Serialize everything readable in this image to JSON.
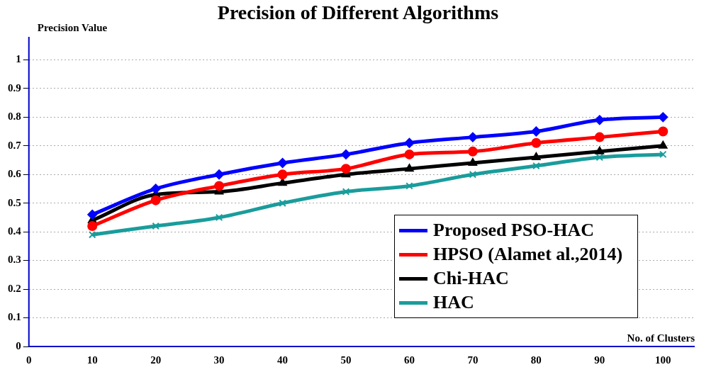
{
  "chart_data": {
    "type": "line",
    "title": "Precision of Different Algorithms",
    "xlabel": "No. of Clusters",
    "ylabel": "Precision Value",
    "x": [
      10,
      20,
      30,
      40,
      50,
      60,
      70,
      80,
      90,
      100
    ],
    "series": [
      {
        "name": "Proposed PSO-HAC",
        "color": "#0000ff",
        "marker": "diamond",
        "values": [
          0.46,
          0.55,
          0.6,
          0.64,
          0.67,
          0.71,
          0.73,
          0.75,
          0.79,
          0.8
        ]
      },
      {
        "name": "HPSO (Alamet al.,2014)",
        "color": "#ff0000",
        "marker": "circle",
        "values": [
          0.42,
          0.51,
          0.56,
          0.6,
          0.62,
          0.67,
          0.68,
          0.71,
          0.73,
          0.75
        ]
      },
      {
        "name": "Chi-HAC",
        "color": "#000000",
        "marker": "triangle",
        "values": [
          0.44,
          0.53,
          0.54,
          0.57,
          0.6,
          0.62,
          0.64,
          0.66,
          0.68,
          0.7
        ]
      },
      {
        "name": "HAC",
        "color": "#1a9c9c",
        "marker": "cross",
        "values": [
          0.39,
          0.42,
          0.45,
          0.5,
          0.54,
          0.56,
          0.6,
          0.63,
          0.66,
          0.67
        ]
      }
    ],
    "xlim": [
      0,
      105
    ],
    "xticks": [
      0,
      10,
      20,
      30,
      40,
      50,
      60,
      70,
      80,
      90,
      100
    ],
    "ylim": [
      0,
      1.08
    ],
    "yticks": [
      0,
      0.1,
      0.2,
      0.3,
      0.4,
      0.5,
      0.6,
      0.7,
      0.8,
      0.9,
      1
    ],
    "grid": "y",
    "legend": "bottom right",
    "line_style": "solid"
  }
}
